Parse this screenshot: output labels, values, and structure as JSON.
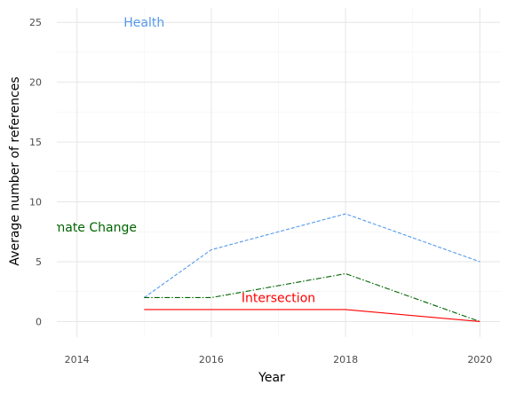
{
  "chart_data": {
    "type": "line",
    "title": "",
    "xlabel": "Year",
    "ylabel": "Average number of references",
    "x_ticks": [
      "2014",
      "2016",
      "2018",
      "2020"
    ],
    "y_ticks": [
      "0",
      "5",
      "10",
      "15",
      "20",
      "25"
    ],
    "xlim": [
      2013.7,
      2020.3
    ],
    "ylim": [
      -1.3,
      26.2
    ],
    "grid": true,
    "legend": "none",
    "series": [
      {
        "name": "Health",
        "color": "#5599ee",
        "dash": "dashed",
        "x": [
          2015,
          2016,
          2018,
          2020
        ],
        "y": [
          2,
          6,
          9,
          5
        ],
        "label_at": [
          2015,
          25
        ]
      },
      {
        "name": "Climate Change",
        "color": "#006400",
        "dash": "dashdot",
        "x": [
          2015,
          2016,
          2018,
          2020
        ],
        "y": [
          2,
          2,
          4,
          0
        ],
        "label_at": [
          2014.15,
          7.9
        ]
      },
      {
        "name": "Intersection",
        "color": "#ff0000",
        "dash": "solid",
        "x": [
          2015,
          2016,
          2018,
          2020
        ],
        "y": [
          1,
          1,
          1,
          0
        ],
        "label_at": [
          2017,
          2
        ]
      }
    ]
  }
}
